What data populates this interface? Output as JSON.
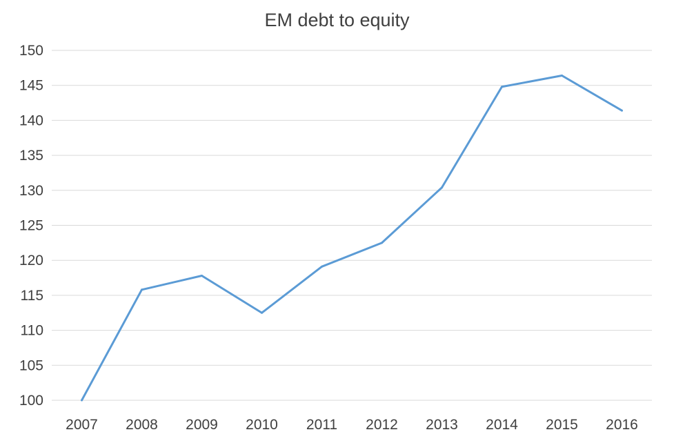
{
  "chart_data": {
    "type": "line",
    "title": "EM debt to equity",
    "xlabel": "",
    "ylabel": "",
    "categories": [
      "2007",
      "2008",
      "2009",
      "2010",
      "2011",
      "2012",
      "2013",
      "2014",
      "2015",
      "2016"
    ],
    "series": [
      {
        "values": [
          100.0,
          115.8,
          117.8,
          112.5,
          119.1,
          122.5,
          130.4,
          144.8,
          146.4,
          141.4
        ],
        "color": "#5b9bd5"
      }
    ],
    "ylim": [
      100,
      150
    ],
    "yticks": [
      "100",
      "105",
      "110",
      "115",
      "120",
      "125",
      "130",
      "135",
      "140",
      "145",
      "150"
    ],
    "grid": true,
    "legend": "none"
  }
}
